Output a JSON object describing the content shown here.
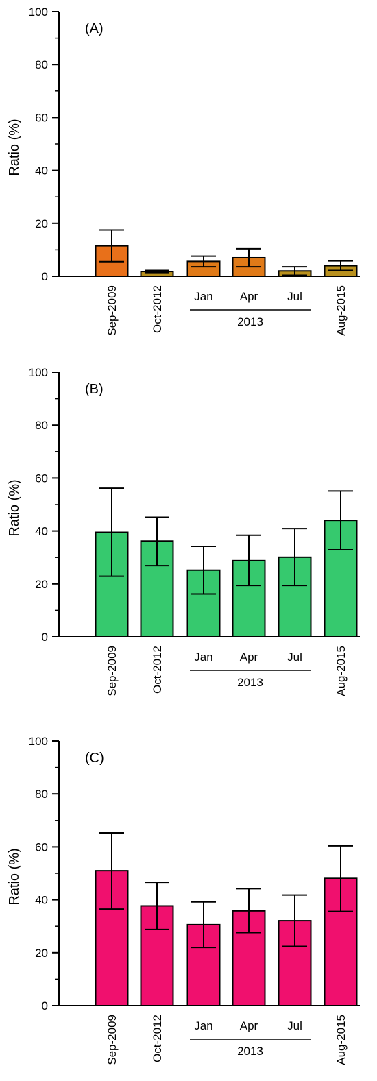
{
  "chart_data": [
    {
      "type": "bar",
      "panel_label": "(A)",
      "ylabel": "Ratio (%)",
      "ylim": [
        0,
        100
      ],
      "yticks": [
        0,
        20,
        40,
        60,
        80,
        100
      ],
      "categories": [
        "Sep-2009",
        "Oct-2012",
        "Jan",
        "Apr",
        "Jul",
        "Aug-2015"
      ],
      "group_label": "2013",
      "values": [
        11.5,
        1.8,
        5.6,
        7.0,
        2.0,
        4.0
      ],
      "error_upper": [
        17.5,
        2.2,
        7.6,
        10.4,
        3.6,
        5.8
      ],
      "error_lower": [
        5.5,
        1.4,
        3.6,
        3.6,
        0.4,
        2.2
      ],
      "bar_colors": [
        "#e8701a",
        "#b8901e",
        "#e07a18",
        "#e07a18",
        "#b8901e",
        "#b8901e"
      ]
    },
    {
      "type": "bar",
      "panel_label": "(B)",
      "ylabel": "Ratio (%)",
      "ylim": [
        0,
        100
      ],
      "yticks": [
        0,
        20,
        40,
        60,
        80,
        100
      ],
      "categories": [
        "Sep-2009",
        "Oct-2012",
        "Jan",
        "Apr",
        "Jul",
        "Aug-2015"
      ],
      "group_label": "2013",
      "values": [
        39.5,
        36.2,
        25.2,
        28.8,
        30.1,
        44.0
      ],
      "error_upper": [
        56.2,
        45.2,
        34.2,
        38.4,
        40.9,
        55.1
      ],
      "error_lower": [
        22.9,
        26.9,
        16.2,
        19.4,
        19.4,
        32.9
      ],
      "bar_colors": [
        "#36c96e",
        "#36c96e",
        "#36c96e",
        "#36c96e",
        "#36c96e",
        "#36c96e"
      ]
    },
    {
      "type": "bar",
      "panel_label": "(C)",
      "ylabel": "Ratio (%)",
      "ylim": [
        0,
        100
      ],
      "yticks": [
        0,
        20,
        40,
        60,
        80,
        100
      ],
      "categories": [
        "Sep-2009",
        "Oct-2012",
        "Jan",
        "Apr",
        "Jul",
        "Aug-2015"
      ],
      "group_label": "2013",
      "values": [
        51.0,
        37.7,
        30.6,
        35.8,
        32.1,
        48.1
      ],
      "error_upper": [
        65.3,
        46.6,
        39.2,
        44.2,
        41.8,
        60.4
      ],
      "error_lower": [
        36.5,
        28.8,
        22.0,
        27.6,
        22.4,
        35.6
      ],
      "bar_colors": [
        "#f0106e",
        "#f0106e",
        "#f0106e",
        "#f0106e",
        "#f0106e",
        "#f0106e"
      ]
    }
  ]
}
